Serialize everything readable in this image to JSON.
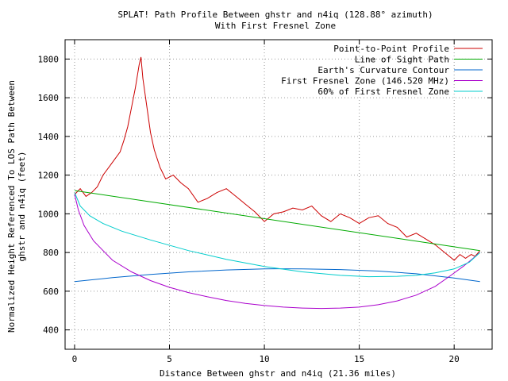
{
  "chart_data": {
    "type": "line",
    "title": "SPLAT! Path Profile Between ghstr and n4iq (128.88° azimuth)",
    "subtitle": "With First Fresnel Zone",
    "xlabel": "Distance Between ghstr and n4iq (21.36 miles)",
    "ylabel_line1": "Normalized Height Referenced To LOS Path Between",
    "ylabel_line2": "ghstr and n4iq (feet)",
    "xlim": [
      -0.5,
      22
    ],
    "ylim": [
      300,
      1900
    ],
    "x_ticks": [
      0,
      5,
      10,
      15,
      20
    ],
    "y_ticks": [
      400,
      600,
      800,
      1000,
      1200,
      1400,
      1600,
      1800
    ],
    "grid": true,
    "legend_position": "top-right",
    "series": [
      {
        "name": "Point-to-Point Profile",
        "color": "#cc0000",
        "x": [
          0,
          0.3,
          0.6,
          0.9,
          1.2,
          1.5,
          1.8,
          2.1,
          2.4,
          2.6,
          2.8,
          3.0,
          3.2,
          3.4,
          3.5,
          3.6,
          3.8,
          4.0,
          4.2,
          4.5,
          4.8,
          5.2,
          5.6,
          6.0,
          6.5,
          7.0,
          7.5,
          8.0,
          8.5,
          9.0,
          9.5,
          10.0,
          10.5,
          11.0,
          11.5,
          12.0,
          12.5,
          13.0,
          13.5,
          14.0,
          14.5,
          15.0,
          15.5,
          16.0,
          16.5,
          17.0,
          17.5,
          18.0,
          18.5,
          19.0,
          19.5,
          20.0,
          20.3,
          20.6,
          20.9,
          21.1,
          21.36
        ],
        "y": [
          1100,
          1130,
          1090,
          1110,
          1140,
          1200,
          1240,
          1280,
          1320,
          1380,
          1450,
          1550,
          1650,
          1770,
          1810,
          1700,
          1560,
          1420,
          1330,
          1240,
          1180,
          1200,
          1160,
          1130,
          1060,
          1080,
          1110,
          1130,
          1090,
          1050,
          1010,
          960,
          1000,
          1010,
          1030,
          1020,
          1040,
          990,
          960,
          1000,
          980,
          950,
          980,
          990,
          950,
          930,
          880,
          900,
          870,
          840,
          800,
          760,
          790,
          770,
          790,
          780,
          810
        ]
      },
      {
        "name": "Line of Sight Path",
        "color": "#00aa00",
        "x": [
          0,
          21.36
        ],
        "y": [
          1120,
          810
        ]
      },
      {
        "name": "Earth's Curvature Contour",
        "color": "#0066cc",
        "x": [
          0,
          2,
          4,
          6,
          8,
          10,
          10.68,
          12,
          14,
          16,
          18,
          20,
          21.36
        ],
        "y": [
          650,
          670,
          687,
          700,
          710,
          715,
          716,
          715,
          712,
          704,
          690,
          668,
          650
        ]
      },
      {
        "name": "First Fresnel Zone (146.520 MHz)",
        "color": "#aa00cc",
        "x": [
          0,
          0.2,
          0.5,
          1,
          2,
          3,
          4,
          5,
          6,
          7,
          8,
          9,
          10,
          11,
          12,
          13,
          14,
          15,
          16,
          17,
          18,
          19,
          19.8,
          20.5,
          21,
          21.36
        ],
        "y": [
          1100,
          1020,
          940,
          860,
          760,
          700,
          655,
          620,
          593,
          571,
          552,
          537,
          526,
          518,
          513,
          511,
          513,
          518,
          530,
          550,
          580,
          625,
          680,
          730,
          770,
          800
        ]
      },
      {
        "name": "60% of First Fresnel Zone",
        "color": "#00cccc",
        "x": [
          0,
          0.3,
          0.8,
          1.5,
          2.5,
          4,
          6,
          8,
          10,
          12,
          14,
          15.5,
          17,
          18,
          19,
          20,
          20.8,
          21.36
        ],
        "y": [
          1110,
          1040,
          990,
          950,
          910,
          865,
          810,
          765,
          728,
          700,
          682,
          675,
          677,
          682,
          695,
          715,
          750,
          800
        ]
      }
    ]
  }
}
